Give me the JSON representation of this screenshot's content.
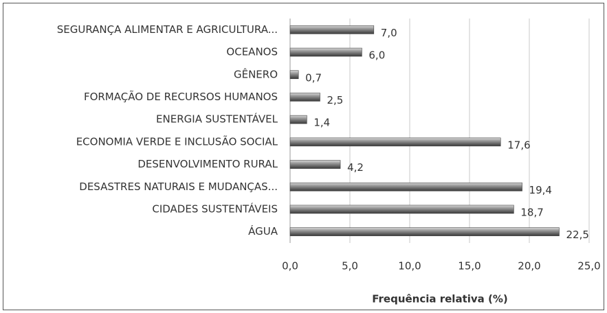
{
  "chart_data": {
    "type": "bar",
    "orientation": "horizontal",
    "categories": [
      "SEGURANÇA ALIMENTAR E AGRICULTURA...",
      "OCEANOS",
      "GÊNERO",
      "FORMAÇÃO DE RECURSOS HUMANOS",
      "ENERGIA SUSTENTÁVEL",
      "ECONOMIA VERDE E INCLUSÃO SOCIAL",
      "DESENVOLVIMENTO RURAL",
      "DESASTRES NATURAIS E MUDANÇAS...",
      "CIDADES SUSTENTÁVEIS",
      "ÁGUA"
    ],
    "values": [
      7.0,
      6.0,
      0.7,
      2.5,
      1.4,
      17.6,
      4.2,
      19.4,
      18.7,
      22.5
    ],
    "value_labels": [
      "7,0",
      "6,0",
      "0,7",
      "2,5",
      "1,4",
      "17,6",
      "4,2",
      "19,4",
      "18,7",
      "22,5"
    ],
    "color": "#7a7a7a",
    "xlabel": "Frequência relativa (%)",
    "xlim": [
      0,
      25
    ],
    "xticks": [
      {
        "value": 0,
        "label": "0,0"
      },
      {
        "value": 5,
        "label": "5,0"
      },
      {
        "value": 10,
        "label": "10,0"
      },
      {
        "value": 15,
        "label": "15,0"
      },
      {
        "value": 20,
        "label": "20,0"
      },
      {
        "value": 25,
        "label": "25,0"
      }
    ],
    "grid": true
  }
}
